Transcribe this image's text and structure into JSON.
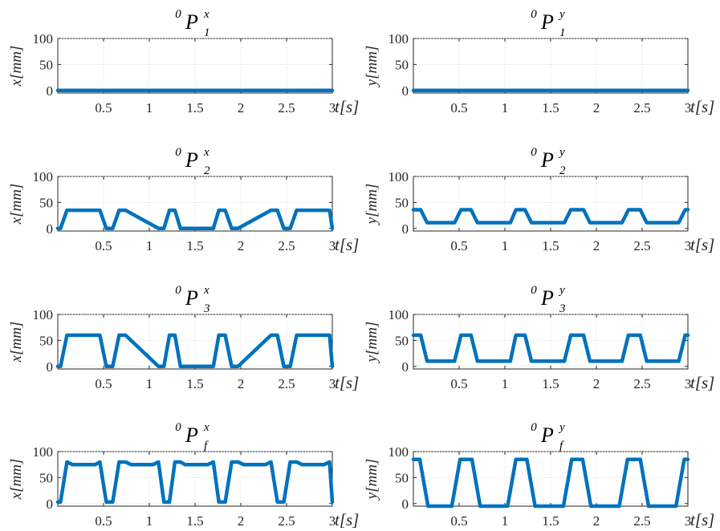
{
  "colors": {
    "series": "#0072BD",
    "axes": "#262626",
    "grid": "#dcdcdc"
  },
  "chart_data": [
    {
      "type": "line",
      "title": {
        "sup": "0",
        "base": "P",
        "upper": "x",
        "lower": "1"
      },
      "xlabel": "t[s]",
      "ylabel": "x[mm]",
      "xlim": [
        0,
        3
      ],
      "ylim": [
        -5,
        100
      ],
      "xticks": [
        0.5,
        1,
        1.5,
        2,
        2.5,
        3
      ],
      "yticks": [
        0,
        50,
        100
      ],
      "grid": true,
      "series": [
        {
          "x": [
            0,
            3
          ],
          "y": [
            0,
            0
          ]
        }
      ]
    },
    {
      "type": "line",
      "title": {
        "sup": "0",
        "base": "P",
        "upper": "y",
        "lower": "1"
      },
      "xlabel": "t[s]",
      "ylabel": "y[mm]",
      "xlim": [
        0,
        3
      ],
      "ylim": [
        -5,
        100
      ],
      "xticks": [
        0.5,
        1,
        1.5,
        2,
        2.5,
        3
      ],
      "yticks": [
        0,
        50,
        100
      ],
      "grid": true,
      "series": [
        {
          "x": [
            0,
            3
          ],
          "y": [
            0,
            0
          ]
        }
      ]
    },
    {
      "type": "line",
      "title": {
        "sup": "0",
        "base": "P",
        "upper": "x",
        "lower": "2"
      },
      "xlabel": "t[s]",
      "ylabel": "x[mm]",
      "xlim": [
        0,
        3
      ],
      "ylim": [
        -5,
        100
      ],
      "xticks": [
        0.5,
        1,
        1.5,
        2,
        2.5,
        3
      ],
      "yticks": [
        0,
        50,
        100
      ],
      "grid": true,
      "series": [
        {
          "x": [
            0,
            0.03,
            0.1,
            0.46,
            0.53,
            0.6,
            0.67,
            0.74,
            1.1,
            1.16,
            1.22,
            1.28,
            1.34,
            1.7,
            1.76,
            1.83,
            1.9,
            1.97,
            2.33,
            2.4,
            2.47,
            2.54,
            2.61,
            2.97,
            3
          ],
          "y": [
            0,
            0,
            35,
            35,
            0,
            0,
            35,
            35,
            0,
            0,
            35,
            35,
            0,
            0,
            35,
            35,
            0,
            0,
            35,
            35,
            0,
            0,
            35,
            35,
            0
          ]
        }
      ]
    },
    {
      "type": "line",
      "title": {
        "sup": "0",
        "base": "P",
        "upper": "y",
        "lower": "2"
      },
      "xlabel": "t[s]",
      "ylabel": "y[mm]",
      "xlim": [
        0,
        3
      ],
      "ylim": [
        -5,
        100
      ],
      "xticks": [
        0.5,
        1,
        1.5,
        2,
        2.5,
        3
      ],
      "yticks": [
        0,
        50,
        100
      ],
      "grid": true,
      "series": [
        {
          "x": [
            0,
            0.08,
            0.15,
            0.45,
            0.52,
            0.63,
            0.7,
            1.06,
            1.12,
            1.22,
            1.29,
            1.65,
            1.72,
            1.86,
            1.93,
            2.28,
            2.35,
            2.48,
            2.55,
            2.9,
            2.97,
            3
          ],
          "y": [
            36,
            36,
            11,
            11,
            36,
            36,
            11,
            11,
            36,
            36,
            11,
            11,
            36,
            36,
            11,
            11,
            36,
            36,
            11,
            11,
            36,
            36
          ]
        }
      ]
    },
    {
      "type": "line",
      "title": {
        "sup": "0",
        "base": "P",
        "upper": "x",
        "lower": "3"
      },
      "xlabel": "t[s]",
      "ylabel": "x[mm]",
      "xlim": [
        0,
        3
      ],
      "ylim": [
        -5,
        100
      ],
      "xticks": [
        0.5,
        1,
        1.5,
        2,
        2.5,
        3
      ],
      "yticks": [
        0,
        50,
        100
      ],
      "grid": true,
      "series": [
        {
          "x": [
            0,
            0.03,
            0.1,
            0.46,
            0.53,
            0.6,
            0.67,
            0.74,
            1.1,
            1.16,
            1.22,
            1.28,
            1.34,
            1.7,
            1.76,
            1.83,
            1.9,
            1.97,
            2.33,
            2.4,
            2.47,
            2.54,
            2.61,
            2.97,
            3
          ],
          "y": [
            0,
            0,
            60,
            60,
            0,
            0,
            60,
            60,
            0,
            0,
            60,
            60,
            0,
            0,
            60,
            60,
            0,
            0,
            60,
            60,
            0,
            0,
            60,
            60,
            0
          ]
        }
      ]
    },
    {
      "type": "line",
      "title": {
        "sup": "0",
        "base": "P",
        "upper": "y",
        "lower": "3"
      },
      "xlabel": "t[s]",
      "ylabel": "y[mm]",
      "xlim": [
        0,
        3
      ],
      "ylim": [
        -5,
        100
      ],
      "xticks": [
        0.5,
        1,
        1.5,
        2,
        2.5,
        3
      ],
      "yticks": [
        0,
        50,
        100
      ],
      "grid": true,
      "series": [
        {
          "x": [
            0,
            0.08,
            0.15,
            0.45,
            0.52,
            0.63,
            0.7,
            1.06,
            1.12,
            1.22,
            1.29,
            1.65,
            1.72,
            1.86,
            1.93,
            2.28,
            2.35,
            2.48,
            2.55,
            2.9,
            2.97,
            3
          ],
          "y": [
            60,
            60,
            10,
            10,
            60,
            60,
            10,
            10,
            60,
            60,
            10,
            10,
            60,
            60,
            10,
            10,
            60,
            60,
            10,
            10,
            60,
            60
          ]
        }
      ]
    },
    {
      "type": "line",
      "title": {
        "sup": "0",
        "base": "P",
        "upper": "x",
        "lower": "f"
      },
      "xlabel": "t[s]",
      "ylabel": "x[mm]",
      "xlim": [
        0,
        3
      ],
      "ylim": [
        -5,
        100
      ],
      "xticks": [
        0.5,
        1,
        1.5,
        2,
        2.5,
        3
      ],
      "yticks": [
        0,
        50,
        100
      ],
      "grid": true,
      "series": [
        {
          "x": [
            0,
            0.03,
            0.1,
            0.16,
            0.41,
            0.46,
            0.53,
            0.6,
            0.67,
            0.74,
            0.8,
            1.04,
            1.1,
            1.16,
            1.22,
            1.28,
            1.34,
            1.39,
            1.64,
            1.7,
            1.76,
            1.83,
            1.9,
            1.97,
            2.03,
            2.27,
            2.33,
            2.4,
            2.47,
            2.54,
            2.61,
            2.67,
            2.91,
            2.97,
            3
          ],
          "y": [
            3,
            3,
            80,
            75,
            75,
            80,
            3,
            3,
            80,
            80,
            75,
            75,
            80,
            3,
            3,
            80,
            80,
            75,
            75,
            80,
            3,
            3,
            80,
            80,
            75,
            75,
            80,
            3,
            3,
            80,
            80,
            75,
            75,
            80,
            3
          ]
        }
      ]
    },
    {
      "type": "line",
      "title": {
        "sup": "0",
        "base": "P",
        "upper": "y",
        "lower": "f"
      },
      "xlabel": "t[s]",
      "ylabel": "y[mm]",
      "xlim": [
        0,
        3
      ],
      "ylim": [
        -5,
        100
      ],
      "xticks": [
        0.5,
        1,
        1.5,
        2,
        2.5,
        3
      ],
      "yticks": [
        0,
        50,
        100
      ],
      "grid": true,
      "series": [
        {
          "x": [
            0,
            0.07,
            0.16,
            0.42,
            0.51,
            0.64,
            0.73,
            1.03,
            1.12,
            1.24,
            1.33,
            1.64,
            1.73,
            1.85,
            1.94,
            2.25,
            2.34,
            2.48,
            2.57,
            2.87,
            2.96,
            3
          ],
          "y": [
            85,
            85,
            -5,
            -5,
            85,
            85,
            -5,
            -5,
            85,
            85,
            -5,
            -5,
            85,
            85,
            -5,
            -5,
            85,
            85,
            -5,
            -5,
            85,
            85
          ]
        }
      ]
    }
  ]
}
